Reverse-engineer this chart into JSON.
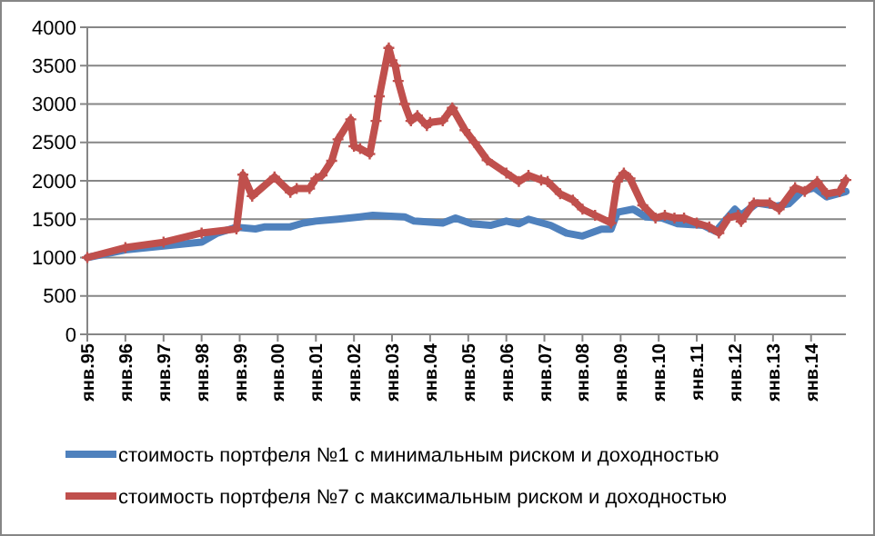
{
  "chart_data": {
    "type": "line",
    "xlim": [
      "1995-01",
      "2014-12"
    ],
    "ylim": [
      0,
      4000
    ],
    "yticks": [
      0,
      500,
      1000,
      1500,
      2000,
      2500,
      3000,
      3500,
      4000
    ],
    "xticks": [
      {
        "value": "1995-01",
        "label": "янв.95"
      },
      {
        "value": "1996-01",
        "label": "янв.96"
      },
      {
        "value": "1997-01",
        "label": "янв.97"
      },
      {
        "value": "1998-01",
        "label": "янв.98"
      },
      {
        "value": "1999-01",
        "label": "янв.99"
      },
      {
        "value": "2000-01",
        "label": "янв.00"
      },
      {
        "value": "2001-01",
        "label": "янв.01"
      },
      {
        "value": "2002-01",
        "label": "янв.02"
      },
      {
        "value": "2003-01",
        "label": "янв.03"
      },
      {
        "value": "2004-01",
        "label": "янв.04"
      },
      {
        "value": "2005-01",
        "label": "янв.05"
      },
      {
        "value": "2006-01",
        "label": "янв.06"
      },
      {
        "value": "2007-01",
        "label": "янв.07"
      },
      {
        "value": "2008-01",
        "label": "янв.08"
      },
      {
        "value": "2009-01",
        "label": "янв.09"
      },
      {
        "value": "2010-01",
        "label": "янв.10"
      },
      {
        "value": "2011-01",
        "label": "янв.11"
      },
      {
        "value": "2012-01",
        "label": "янв.12"
      },
      {
        "value": "2013-01",
        "label": "янв.13"
      },
      {
        "value": "2014-01",
        "label": "янв.14"
      }
    ],
    "grid": "y",
    "legend": "bottom",
    "line_style": "solid",
    "series": [
      {
        "name": "стоимость  портфеля №1 с минимальным  риском  и доходностью",
        "color": "#4f81bd",
        "marker": "none",
        "x": [
          "1995-01",
          "1996-01",
          "1997-01",
          "1998-01",
          "1998-06",
          "1998-12",
          "1999-06",
          "1999-09",
          "2000-05",
          "2000-09",
          "2001-01",
          "2001-08",
          "2002-03",
          "2002-07",
          "2003-05",
          "2003-08",
          "2004-05",
          "2004-09",
          "2005-02",
          "2005-08",
          "2006-01",
          "2006-05",
          "2006-08",
          "2007-03",
          "2007-08",
          "2008-01",
          "2008-07",
          "2008-10",
          "2008-12",
          "2009-05",
          "2009-09",
          "2010-02",
          "2010-07",
          "2011-03",
          "2011-07",
          "2012-01",
          "2012-03",
          "2012-08",
          "2013-02",
          "2013-06",
          "2013-10",
          "2014-02",
          "2014-06",
          "2014-12"
        ],
        "values": [
          1000,
          1100,
          1150,
          1200,
          1318,
          1395,
          1373,
          1400,
          1400,
          1450,
          1475,
          1500,
          1530,
          1550,
          1530,
          1475,
          1450,
          1515,
          1440,
          1420,
          1475,
          1440,
          1500,
          1420,
          1318,
          1280,
          1370,
          1370,
          1590,
          1630,
          1530,
          1515,
          1440,
          1420,
          1340,
          1630,
          1550,
          1710,
          1670,
          1700,
          1860,
          1910,
          1790,
          1860
        ]
      },
      {
        "name": "стоимость  портфеля №7 с максимальным   риском  и доходностью",
        "color": "#c0504d",
        "marker": "cross",
        "x": [
          "1995-01",
          "1996-01",
          "1997-01",
          "1998-01",
          "1998-12",
          "1999-02",
          "1999-05",
          "1999-12",
          "2000-05",
          "2000-07",
          "2000-11",
          "2001-01",
          "2001-03",
          "2001-06",
          "2001-08",
          "2001-12",
          "2002-01",
          "2002-03",
          "2002-06",
          "2002-08",
          "2002-09",
          "2002-12",
          "2003-01",
          "2003-02",
          "2003-03",
          "2003-05",
          "2003-07",
          "2003-09",
          "2003-12",
          "2004-01",
          "2004-05",
          "2004-08",
          "2004-12",
          "2005-03",
          "2005-07",
          "2006-01",
          "2006-05",
          "2006-08",
          "2006-12",
          "2007-02",
          "2007-06",
          "2007-10",
          "2008-01",
          "2008-05",
          "2008-10",
          "2008-12",
          "2009-02",
          "2009-04",
          "2009-08",
          "2009-12",
          "2010-03",
          "2010-06",
          "2010-09",
          "2011-01",
          "2011-05",
          "2011-08",
          "2011-11",
          "2012-02",
          "2012-03",
          "2012-07",
          "2012-12",
          "2013-03",
          "2013-08",
          "2013-11",
          "2014-03",
          "2014-06",
          "2014-10",
          "2014-12"
        ],
        "values": [
          1000,
          1130,
          1200,
          1320,
          1373,
          2080,
          1800,
          2050,
          1850,
          1900,
          1900,
          2030,
          2070,
          2260,
          2540,
          2800,
          2450,
          2420,
          2350,
          2780,
          3100,
          3730,
          3570,
          3500,
          3300,
          3000,
          2780,
          2850,
          2720,
          2760,
          2780,
          2950,
          2660,
          2500,
          2270,
          2100,
          1990,
          2070,
          2010,
          1990,
          1830,
          1750,
          1630,
          1550,
          1450,
          1990,
          2100,
          2030,
          1680,
          1515,
          1550,
          1515,
          1515,
          1450,
          1400,
          1320,
          1515,
          1550,
          1470,
          1710,
          1710,
          1630,
          1910,
          1860,
          1990,
          1830,
          1860,
          2010
        ]
      }
    ]
  }
}
